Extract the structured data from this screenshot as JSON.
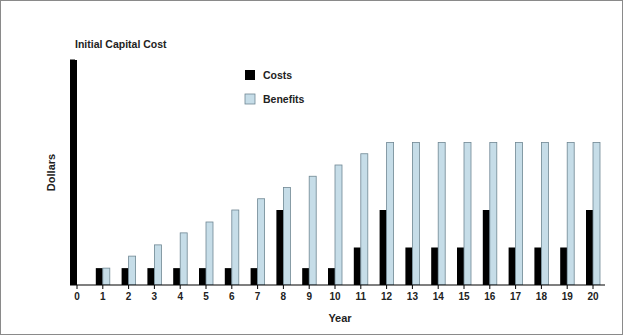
{
  "chart_data": {
    "type": "bar",
    "annotation": "Initial Capital Cost",
    "x_label": "Year",
    "y_label": "Dollars",
    "categories": [
      "0",
      "1",
      "2",
      "3",
      "4",
      "5",
      "6",
      "7",
      "8",
      "9",
      "10",
      "11",
      "12",
      "13",
      "14",
      "15",
      "16",
      "17",
      "18",
      "19",
      "20"
    ],
    "series": [
      {
        "name": "Costs",
        "color": "#000000",
        "values": [
          6,
          0.45,
          0.45,
          0.45,
          0.45,
          0.45,
          0.45,
          0.45,
          2.0,
          0.45,
          0.45,
          1.0,
          2.0,
          1.0,
          1.0,
          1.0,
          2.0,
          1.0,
          1.0,
          1.0,
          2.0
        ]
      },
      {
        "name": "Benefits",
        "color": "#c6dde8",
        "values": [
          null,
          0.45,
          0.77,
          1.07,
          1.39,
          1.68,
          2.0,
          2.3,
          2.6,
          2.9,
          3.2,
          3.5,
          3.8,
          3.8,
          3.8,
          3.8,
          3.8,
          3.8,
          3.8,
          3.8,
          3.8
        ]
      }
    ],
    "ylim": [
      0,
      6
    ],
    "yticks": [
      0,
      1,
      2,
      3,
      4,
      5,
      6
    ],
    "grid": false,
    "legend": "top-left",
    "tick_labels": "x"
  }
}
